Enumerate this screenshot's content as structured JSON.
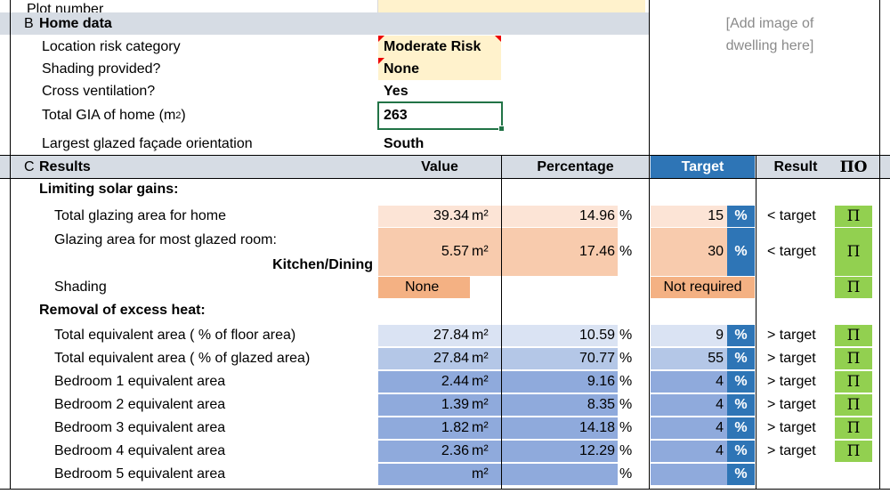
{
  "top_row": {
    "label": "Plot number"
  },
  "home": {
    "header_letter": "B",
    "header_title": "Home data",
    "image_placeholder": "[Add image of dwelling here]",
    "rows": [
      {
        "label": "Location risk category",
        "value": "Moderate Risk"
      },
      {
        "label": "Shading provided?",
        "value": "None"
      },
      {
        "label": "Cross ventilation?",
        "value": "Yes"
      },
      {
        "label": "Total GIA of home (m",
        "label_sup": "2",
        "label_end": ")",
        "value": "263"
      },
      {
        "label": "Largest glazed façade orientation",
        "value": "South"
      }
    ]
  },
  "results": {
    "header_letter": "C",
    "header_title": "Results",
    "col_value": "Value",
    "col_percentage": "Percentage",
    "col_target": "Target",
    "col_result": "Result",
    "col_symbol": "ΠΟ",
    "sub1": "Limiting solar gains:",
    "total_glazing": {
      "label": "Total glazing area for home",
      "value": "39.34",
      "unit": "m²",
      "pct": "14.96",
      "pct_unit": "%",
      "target": "15",
      "target_unit": "%",
      "result": "< target",
      "symbol": "Π"
    },
    "room_glazing": {
      "label": "Glazing area for most glazed room:",
      "room": "Kitchen/Dining",
      "value": "5.57",
      "unit": "m²",
      "pct": "17.46",
      "pct_unit": "%",
      "target": "30",
      "target_unit": "%",
      "result": "< target",
      "symbol": "Π"
    },
    "shading": {
      "label": "Shading",
      "value": "None",
      "target": "Not required",
      "symbol": "Π"
    },
    "sub2": "Removal of excess heat:",
    "heat_rows": [
      {
        "label": "Total equivalent area ( % of floor area)",
        "value": "27.84",
        "unit": "m²",
        "pct": "10.59",
        "pct_unit": "%",
        "target": "9",
        "target_unit": "%",
        "result": "> target",
        "symbol": "Π"
      },
      {
        "label": "Total equivalent area ( % of glazed area)",
        "value": "27.84",
        "unit": "m²",
        "pct": "70.77",
        "pct_unit": "%",
        "target": "55",
        "target_unit": "%",
        "result": "> target",
        "symbol": "Π"
      },
      {
        "label": "Bedroom 1 equivalent area",
        "value": "2.44",
        "unit": "m²",
        "pct": "9.16",
        "pct_unit": "%",
        "target": "4",
        "target_unit": "%",
        "result": "> target",
        "symbol": "Π"
      },
      {
        "label": "Bedroom 2 equivalent area",
        "value": "1.39",
        "unit": "m²",
        "pct": "8.35",
        "pct_unit": "%",
        "target": "4",
        "target_unit": "%",
        "result": "> target",
        "symbol": "Π"
      },
      {
        "label": "Bedroom 3 equivalent area",
        "value": "1.82",
        "unit": "m²",
        "pct": "14.18",
        "pct_unit": "%",
        "target": "4",
        "target_unit": "%",
        "result": "> target",
        "symbol": "Π"
      },
      {
        "label": "Bedroom 4 equivalent area",
        "value": "2.36",
        "unit": "m²",
        "pct": "12.29",
        "pct_unit": "%",
        "target": "4",
        "target_unit": "%",
        "result": "> target",
        "symbol": "Π"
      },
      {
        "label": "Bedroom 5 equivalent area",
        "value": "",
        "unit": "m²",
        "pct": "",
        "pct_unit": "%",
        "target": "",
        "target_unit": "%",
        "result": "",
        "symbol": ""
      }
    ]
  },
  "colors": {
    "header_bg": "#d6dce4",
    "input_bg": "#fff2cc",
    "target_blue": "#2e75b6",
    "pass_green": "#92d050",
    "peach_light": "#fce4d6",
    "peach_mid": "#f8cbad",
    "peach_dark": "#f4b183",
    "blue_light": "#dae3f3",
    "blue_mid": "#b4c7e7",
    "blue_dark": "#8faadc",
    "selection_border": "#217346",
    "comment_marker": "#e00000"
  }
}
